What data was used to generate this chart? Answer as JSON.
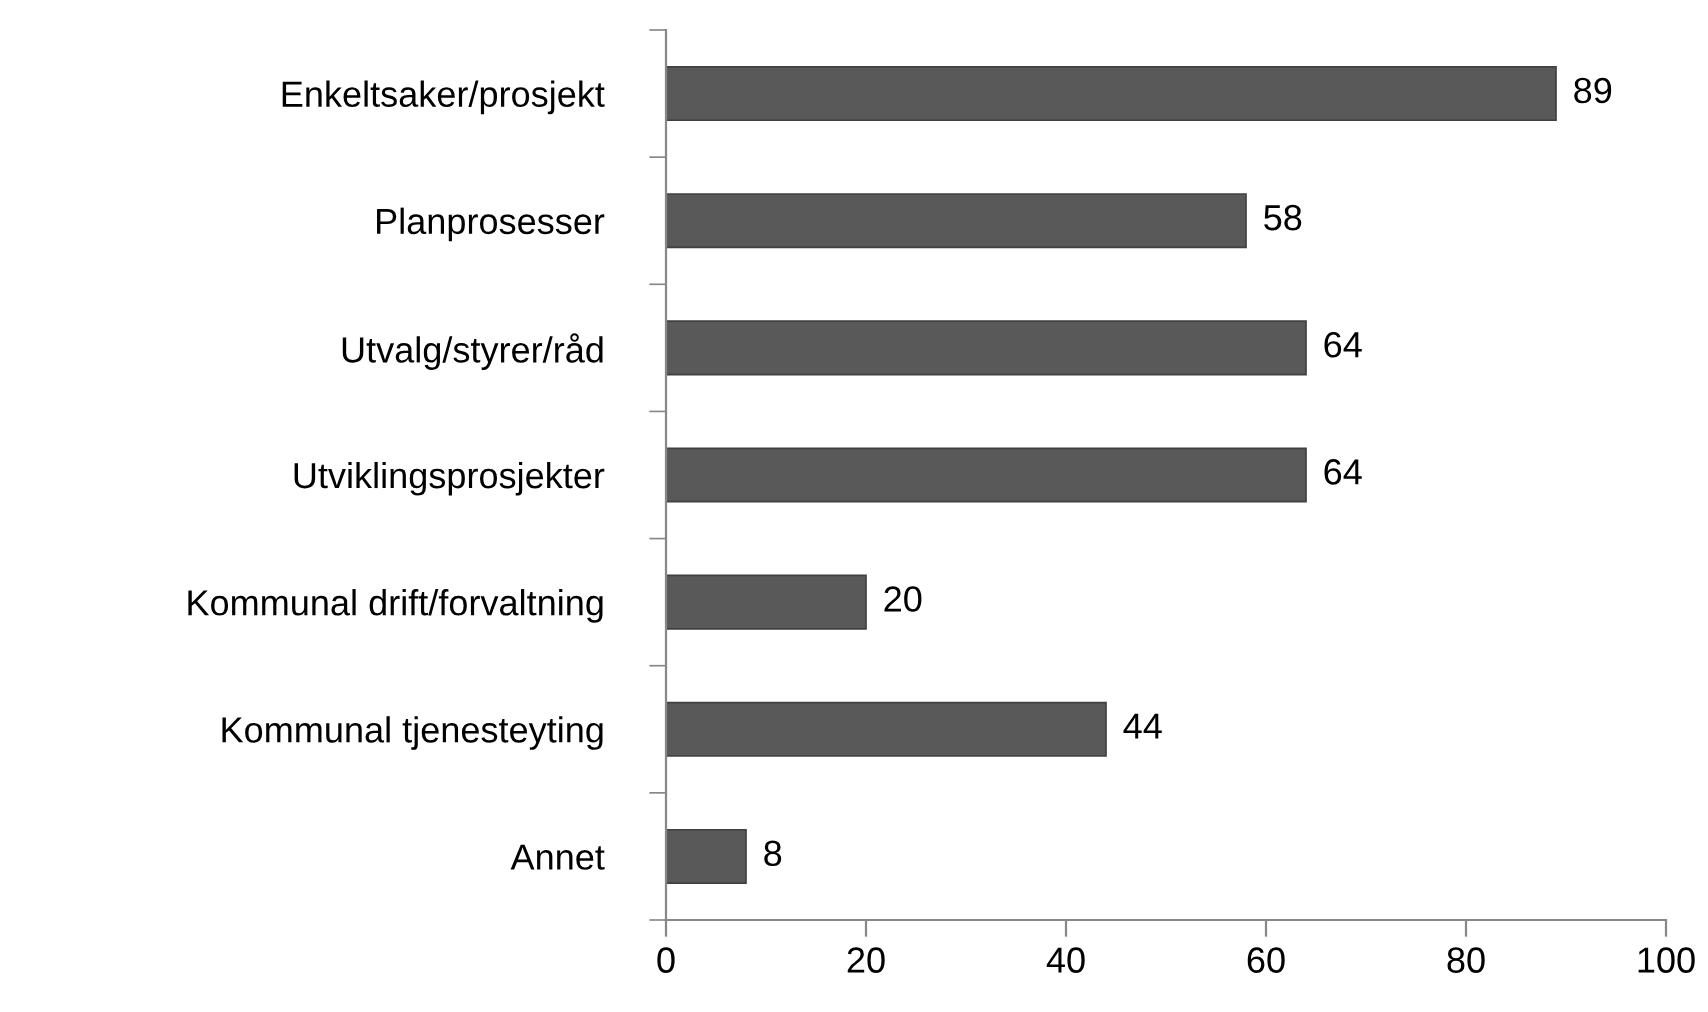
{
  "chart_data": {
    "type": "bar",
    "orientation": "horizontal",
    "categories": [
      "Enkeltsaker/prosjekt",
      "Planprosesser",
      "Utvalg/styrer/råd",
      "Utviklingsprosjekter",
      "Kommunal drift/forvaltning",
      "Kommunal tjenesteyting",
      "Annet"
    ],
    "values": [
      89,
      58,
      64,
      64,
      20,
      44,
      8
    ],
    "color": "#595959",
    "xlim": [
      0,
      100
    ],
    "xticks": [
      0,
      20,
      40,
      60,
      80,
      100
    ],
    "data_labels": true,
    "grid": false,
    "legend": false
  }
}
